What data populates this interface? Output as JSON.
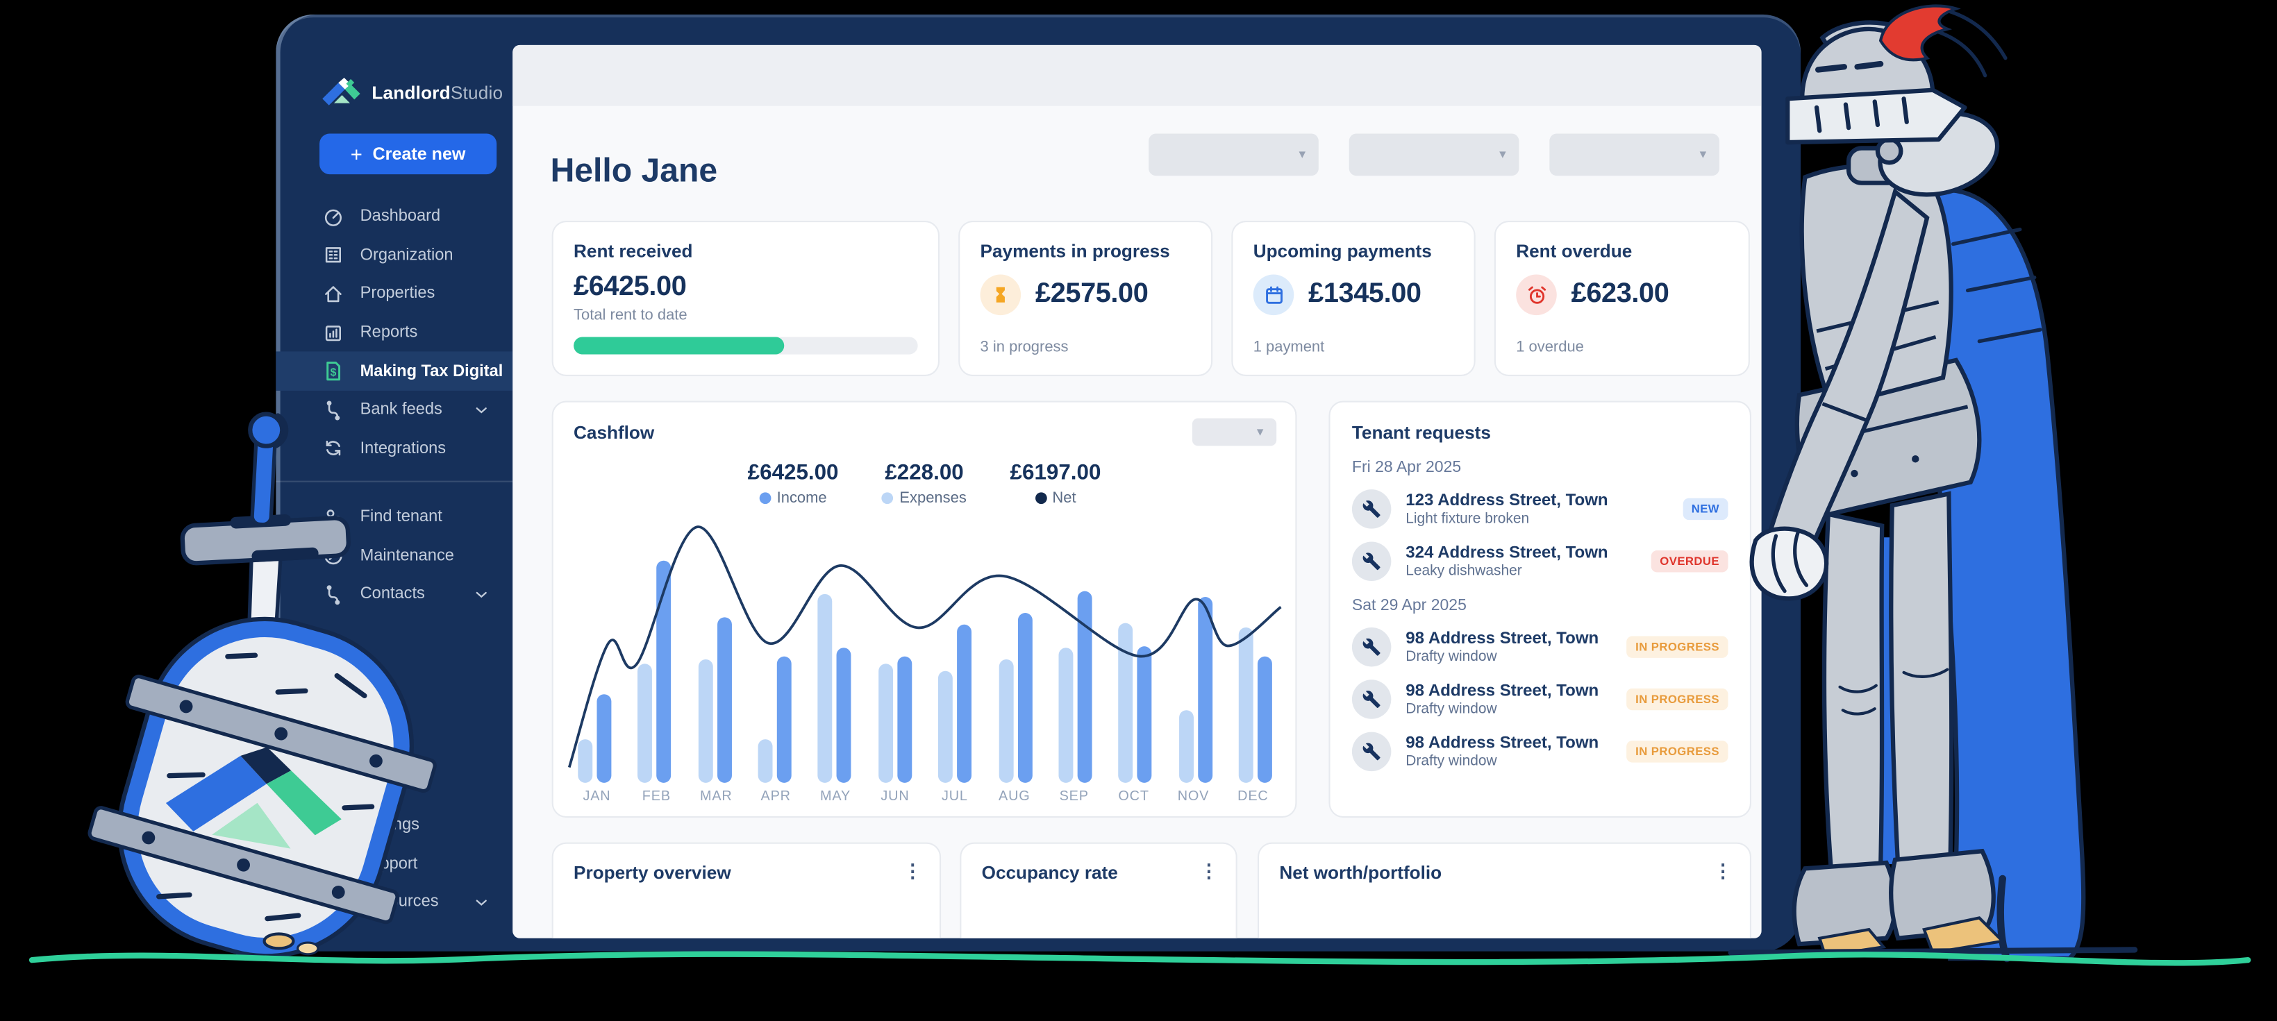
{
  "brand": {
    "name_bold": "Landlord",
    "name_light": "Studio",
    "logo_colors": {
      "left_slope": "#2e6fe0",
      "right_slope": "#3ecb94",
      "chimney": "#ffffff",
      "underside": "#a5e5c6",
      "ridge": "#13294e"
    }
  },
  "sidebar": {
    "create_button_label": "Create new",
    "nav_main": [
      {
        "label": "Dashboard",
        "icon": "dashboard-icon"
      },
      {
        "label": "Organization",
        "icon": "organization-icon"
      },
      {
        "label": "Properties",
        "icon": "properties-icon"
      },
      {
        "label": "Reports",
        "icon": "reports-icon"
      },
      {
        "label": "Making Tax Digital",
        "icon": "tax-document-icon",
        "active": true
      },
      {
        "label": "Bank feeds",
        "icon": "bank-feeds-icon",
        "chevron": true
      },
      {
        "label": "Integrations",
        "icon": "integrations-icon"
      }
    ],
    "nav_secondary": [
      {
        "label": "Find tenant",
        "icon": "find-tenant-icon"
      },
      {
        "label": "Maintenance",
        "icon": "maintenance-icon"
      },
      {
        "label": "Contacts",
        "icon": "contacts-icon",
        "chevron": true
      }
    ],
    "nav_footer": [
      {
        "label": "Settings",
        "icon": "settings-icon"
      },
      {
        "label": "Support",
        "icon": "support-icon"
      },
      {
        "label": "Resources",
        "icon": "resources-icon",
        "chevron": true
      }
    ]
  },
  "header": {
    "greeting": "Hello Jane",
    "filter_placeholders": [
      "",
      "",
      ""
    ]
  },
  "stats": [
    {
      "title": "Rent received",
      "amount": "£6425.00",
      "subtitle": "Total rent to date",
      "progress_pct": 61,
      "progress_color": "#2fcb98"
    },
    {
      "title": "Payments in progress",
      "amount": "£2575.00",
      "subtitle": "3 in progress",
      "icon": "hourglass-icon",
      "icon_color": "#f5a623",
      "icon_bg": "#fdeeda"
    },
    {
      "title": "Upcoming payments",
      "amount": "£1345.00",
      "subtitle": "1 payment",
      "icon": "calendar-icon",
      "icon_color": "#2e6fe0",
      "icon_bg": "#dcebfb"
    },
    {
      "title": "Rent overdue",
      "amount": "£623.00",
      "subtitle": "1 overdue",
      "icon": "alarm-clock-icon",
      "icon_color": "#e0352b",
      "icon_bg": "#fbe2df"
    }
  ],
  "cashflow": {
    "title": "Cashflow",
    "summary": [
      {
        "amount": "£6425.00",
        "label": "Income",
        "color": "#6b9ff0"
      },
      {
        "amount": "£228.00",
        "label": "Expenses",
        "color": "#bcd6f6"
      },
      {
        "amount": "£6197.00",
        "label": "Net",
        "color": "#12294d"
      }
    ]
  },
  "chart_data": {
    "type": "bar+line",
    "title": "Cashflow",
    "categories": [
      "JAN",
      "FEB",
      "MAR",
      "APR",
      "MAY",
      "JUN",
      "JUL",
      "AUG",
      "SEP",
      "OCT",
      "NOV",
      "DEC"
    ],
    "units": "relative height, % of plot (no numeric axis shown)",
    "ylim": [
      0,
      100
    ],
    "grid": false,
    "legend_position": "top-center",
    "series": [
      {
        "name": "Expenses",
        "type": "bar",
        "color": "#bcd6f6",
        "values": [
          17,
          46,
          48,
          17,
          73,
          46,
          43,
          48,
          52,
          62,
          28,
          60
        ]
      },
      {
        "name": "Income",
        "type": "bar",
        "color": "#6b9ff0",
        "values": [
          34,
          86,
          64,
          49,
          52,
          49,
          61,
          66,
          74,
          53,
          72,
          49
        ]
      },
      {
        "name": "Net",
        "type": "line",
        "color": "#1d3a63",
        "points_pct": [
          [
            0,
            6
          ],
          [
            5.5,
            54
          ],
          [
            9.5,
            46
          ],
          [
            18,
            99
          ],
          [
            28,
            54
          ],
          [
            38,
            84
          ],
          [
            49,
            60
          ],
          [
            61,
            80
          ],
          [
            80,
            49
          ],
          [
            88,
            71
          ],
          [
            92.5,
            53
          ],
          [
            100,
            68
          ]
        ]
      }
    ],
    "totals": {
      "income": "£6425.00",
      "expenses": "£228.00",
      "net": "£6197.00"
    }
  },
  "tenant_requests": {
    "title": "Tenant requests",
    "groups": [
      {
        "date": "Fri 28 Apr 2025",
        "items": [
          {
            "address": "123 Address Street, Town",
            "issue": "Light fixture broken",
            "status": "NEW"
          },
          {
            "address": "324 Address Street, Town",
            "issue": "Leaky dishwasher",
            "status": "OVERDUE"
          }
        ]
      },
      {
        "date": "Sat 29 Apr 2025",
        "items": [
          {
            "address": "98 Address Street, Town",
            "issue": "Drafty window",
            "status": "IN PROGRESS"
          },
          {
            "address": "98 Address Street, Town",
            "issue": "Drafty window",
            "status": "IN PROGRESS"
          },
          {
            "address": "98 Address Street, Town",
            "issue": "Drafty window",
            "status": "IN PROGRESS"
          }
        ]
      }
    ],
    "status_styles": {
      "NEW": {
        "fg": "#2e6fe0",
        "bg": "#ddeafc"
      },
      "OVERDUE": {
        "fg": "#df352c",
        "bg": "#fbe3e0"
      },
      "IN PROGRESS": {
        "fg": "#e89b3c",
        "bg": "#fdf1e0"
      }
    }
  },
  "bottom_cards": [
    {
      "title": "Property overview"
    },
    {
      "title": "Occupancy rate"
    },
    {
      "title": "Net worth/portfolio"
    }
  ],
  "icons": {
    "caret_down": "▾",
    "kebab_menu": "⋮",
    "plus": "+"
  },
  "illustration_colors": {
    "background": "#000000",
    "ground_green": "#2fd09a",
    "frame_navy": "#16305a",
    "armor_gray": "#c7cdd5",
    "armor_light": "#d9dee4",
    "cape_blue": "#2e6fe0",
    "plume_red": "#e23b30",
    "outline_navy": "#13294e",
    "sandal_tan": "#ecc27b"
  }
}
